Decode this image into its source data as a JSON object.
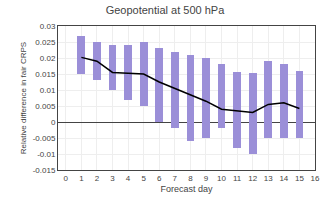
{
  "chart_data": {
    "type": "bar",
    "title": "Geopotential at 500 hPa",
    "xlabel": "Forecast day",
    "ylabel": "Relative difference in fair CRPS",
    "x": [
      1,
      2,
      3,
      4,
      5,
      6,
      7,
      8,
      9,
      10,
      11,
      12,
      13,
      14,
      15
    ],
    "series": [
      {
        "type": "bar",
        "color": "#9B8FD8",
        "top": [
          0.027,
          0.025,
          0.024,
          0.024,
          0.025,
          0.023,
          0.022,
          0.021,
          0.02,
          0.018,
          0.0155,
          0.0152,
          0.019,
          0.018,
          0.016
        ],
        "bottom": [
          0.015,
          0.013,
          0.01,
          0.007,
          0.005,
          0.0,
          -0.002,
          -0.006,
          -0.005,
          -0.002,
          -0.008,
          -0.01,
          -0.005,
          -0.005,
          -0.005
        ]
      },
      {
        "type": "line",
        "color": "#000000",
        "values": [
          0.0202,
          0.019,
          0.0155,
          0.0153,
          0.015,
          0.0125,
          0.0105,
          0.0085,
          0.0065,
          0.004,
          0.0035,
          0.003,
          0.0055,
          0.006,
          0.0042
        ]
      }
    ],
    "xlim": [
      -0.5,
      16
    ],
    "xticks": [
      0,
      1,
      2,
      3,
      4,
      5,
      6,
      7,
      8,
      9,
      10,
      11,
      12,
      13,
      14,
      15,
      16
    ],
    "ylim": [
      -0.015,
      0.03
    ],
    "yticks": [
      -0.015,
      -0.01,
      -0.005,
      0,
      0.005,
      0.01,
      0.015,
      0.02,
      0.025,
      0.03
    ],
    "grid": true
  }
}
